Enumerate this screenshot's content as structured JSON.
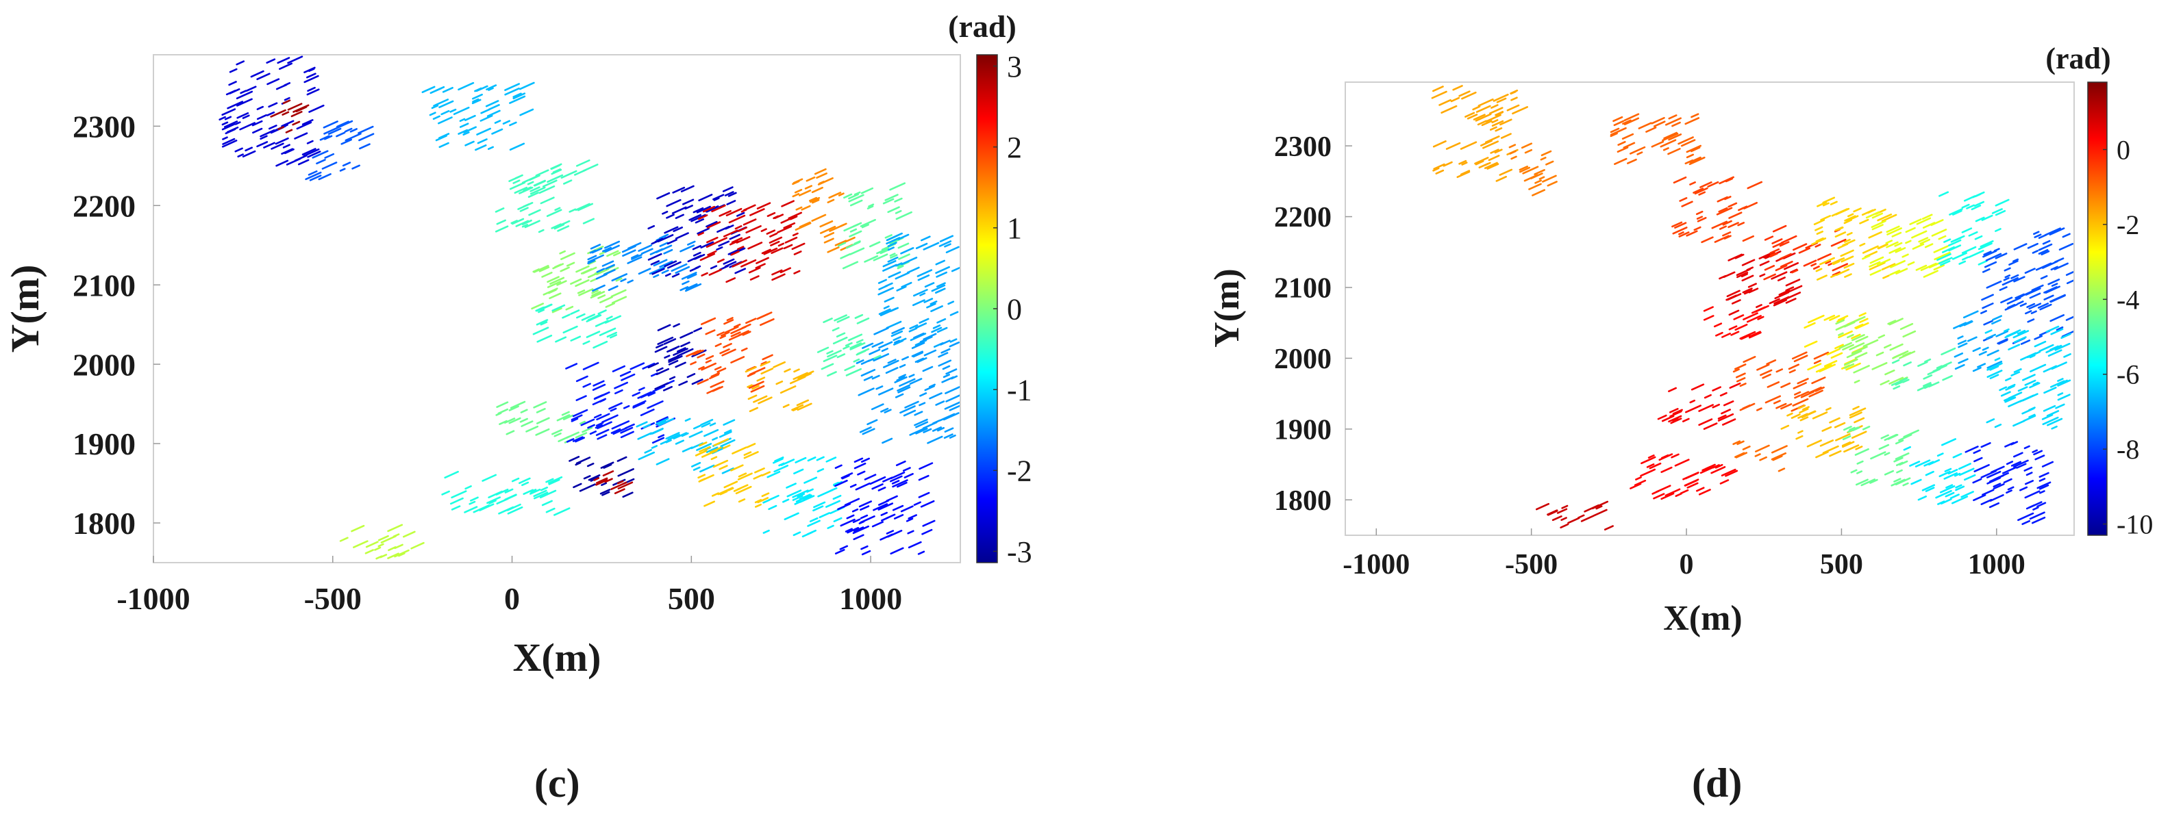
{
  "chart_data": [
    {
      "type": "heatmap",
      "panel": "c",
      "xlabel": "X(m)",
      "ylabel": "Y(m)",
      "xlim": [
        -1000,
        1250
      ],
      "ylim": [
        1750,
        2390
      ],
      "xticks": [
        -1000,
        -500,
        0,
        500,
        1000
      ],
      "yticks": [
        1800,
        1900,
        2000,
        2100,
        2200,
        2300
      ],
      "colorbar": {
        "unit": "(rad)",
        "colormap": "jet",
        "range": [
          -3.14,
          3.14
        ],
        "ticks": [
          3,
          2,
          1,
          0,
          -1,
          -2,
          -3
        ]
      },
      "bands": [
        {
          "x": [
            -820,
            -560
          ],
          "y": [
            2250,
            2380
          ],
          "value": -2.6
        },
        {
          "x": [
            -680,
            -600
          ],
          "y": [
            2290,
            2330
          ],
          "value": 2.9
        },
        {
          "x": [
            -580,
            -420
          ],
          "y": [
            2230,
            2300
          ],
          "value": -1.8
        },
        {
          "x": [
            -250,
            30
          ],
          "y": [
            2270,
            2350
          ],
          "value": -1.2
        },
        {
          "x": [
            -50,
            200
          ],
          "y": [
            2160,
            2250
          ],
          "value": -0.4
        },
        {
          "x": [
            50,
            300
          ],
          "y": [
            2060,
            2140
          ],
          "value": 0.1
        },
        {
          "x": [
            200,
            500
          ],
          "y": [
            2090,
            2160
          ],
          "value": -1.5
        },
        {
          "x": [
            380,
            630
          ],
          "y": [
            2110,
            2220
          ],
          "value": -2.7
        },
        {
          "x": [
            520,
            800
          ],
          "y": [
            2100,
            2200
          ],
          "value": 2.6
        },
        {
          "x": [
            780,
            920
          ],
          "y": [
            2140,
            2240
          ],
          "value": 1.5
        },
        {
          "x": [
            900,
            1080
          ],
          "y": [
            2120,
            2220
          ],
          "value": -0.2
        },
        {
          "x": [
            1020,
            1230
          ],
          "y": [
            2020,
            2160
          ],
          "value": -1.3
        },
        {
          "x": [
            50,
            300
          ],
          "y": [
            2020,
            2070
          ],
          "value": -0.5
        },
        {
          "x": [
            -50,
            200
          ],
          "y": [
            1900,
            1950
          ],
          "value": -0.1
        },
        {
          "x": [
            150,
            430
          ],
          "y": [
            1900,
            2000
          ],
          "value": -2.2
        },
        {
          "x": [
            380,
            520
          ],
          "y": [
            1960,
            2050
          ],
          "value": -2.8
        },
        {
          "x": [
            480,
            700
          ],
          "y": [
            1960,
            2060
          ],
          "value": 1.9
        },
        {
          "x": [
            650,
            820
          ],
          "y": [
            1940,
            2000
          ],
          "value": 1.2
        },
        {
          "x": [
            850,
            1000
          ],
          "y": [
            1980,
            2060
          ],
          "value": -0.3
        },
        {
          "x": [
            960,
            1230
          ],
          "y": [
            1900,
            2040
          ],
          "value": -1.4
        },
        {
          "x": [
            -200,
            130
          ],
          "y": [
            1810,
            1860
          ],
          "value": -0.6
        },
        {
          "x": [
            160,
            320
          ],
          "y": [
            1830,
            1880
          ],
          "value": -2.9
        },
        {
          "x": [
            220,
            300
          ],
          "y": [
            1830,
            1860
          ],
          "value": 2.8
        },
        {
          "x": [
            330,
            600
          ],
          "y": [
            1860,
            1930
          ],
          "value": -1.1
        },
        {
          "x": [
            500,
            700
          ],
          "y": [
            1820,
            1900
          ],
          "value": 1.1
        },
        {
          "x": [
            700,
            900
          ],
          "y": [
            1780,
            1880
          ],
          "value": -0.9
        },
        {
          "x": [
            900,
            1150
          ],
          "y": [
            1760,
            1880
          ],
          "value": -2.3
        },
        {
          "x": [
            -500,
            -250
          ],
          "y": [
            1755,
            1790
          ],
          "value": 0.4
        }
      ]
    },
    {
      "type": "heatmap",
      "panel": "d",
      "xlabel": "X(m)",
      "ylabel": "Y(m)",
      "xlim": [
        -1100,
        1250
      ],
      "ylim": [
        1750,
        2390
      ],
      "xticks": [
        -1000,
        -500,
        0,
        500,
        1000
      ],
      "yticks": [
        1800,
        1900,
        2000,
        2100,
        2200,
        2300
      ],
      "colorbar": {
        "unit": "(rad)",
        "colormap": "jet",
        "range": [
          -10.3,
          1.8
        ],
        "ticks": [
          0,
          -2,
          -4,
          -6,
          -8,
          -10
        ]
      },
      "bands": [
        {
          "x": [
            -820,
            -560
          ],
          "y": [
            2250,
            2380
          ],
          "value": -1.7
        },
        {
          "x": [
            -580,
            -420
          ],
          "y": [
            2230,
            2300
          ],
          "value": -1.2
        },
        {
          "x": [
            -250,
            30
          ],
          "y": [
            2270,
            2350
          ],
          "value": -0.9
        },
        {
          "x": [
            -50,
            200
          ],
          "y": [
            2160,
            2250
          ],
          "value": -0.5
        },
        {
          "x": [
            100,
            350
          ],
          "y": [
            2060,
            2150
          ],
          "value": 0.6
        },
        {
          "x": [
            250,
            480
          ],
          "y": [
            2110,
            2180
          ],
          "value": -0.3
        },
        {
          "x": [
            400,
            650
          ],
          "y": [
            2110,
            2220
          ],
          "value": -2.2
        },
        {
          "x": [
            550,
            820
          ],
          "y": [
            2110,
            2200
          ],
          "value": -3.0
        },
        {
          "x": [
            800,
            1000
          ],
          "y": [
            2130,
            2230
          ],
          "value": -5.5
        },
        {
          "x": [
            950,
            1230
          ],
          "y": [
            2020,
            2180
          ],
          "value": -7.8
        },
        {
          "x": [
            50,
            250
          ],
          "y": [
            2020,
            2070
          ],
          "value": 0.2
        },
        {
          "x": [
            -100,
            150
          ],
          "y": [
            1900,
            1960
          ],
          "value": 0.4
        },
        {
          "x": [
            150,
            420
          ],
          "y": [
            1920,
            2000
          ],
          "value": -0.7
        },
        {
          "x": [
            380,
            560
          ],
          "y": [
            1980,
            2060
          ],
          "value": -2.5
        },
        {
          "x": [
            480,
            700
          ],
          "y": [
            1960,
            2050
          ],
          "value": -4.0
        },
        {
          "x": [
            650,
            830
          ],
          "y": [
            1950,
            2010
          ],
          "value": -4.8
        },
        {
          "x": [
            850,
            1000
          ],
          "y": [
            1980,
            2060
          ],
          "value": -6.8
        },
        {
          "x": [
            960,
            1230
          ],
          "y": [
            1900,
            2040
          ],
          "value": -6.2
        },
        {
          "x": [
            -200,
            130
          ],
          "y": [
            1800,
            1860
          ],
          "value": 0.3
        },
        {
          "x": [
            150,
            320
          ],
          "y": [
            1840,
            1880
          ],
          "value": -1.0
        },
        {
          "x": [
            300,
            560
          ],
          "y": [
            1860,
            1930
          ],
          "value": -2.0
        },
        {
          "x": [
            500,
            720
          ],
          "y": [
            1820,
            1900
          ],
          "value": -4.5
        },
        {
          "x": [
            700,
            900
          ],
          "y": [
            1790,
            1880
          ],
          "value": -6.0
        },
        {
          "x": [
            900,
            1150
          ],
          "y": [
            1760,
            1880
          ],
          "value": -8.5
        },
        {
          "x": [
            -500,
            -250
          ],
          "y": [
            1755,
            1790
          ],
          "value": 0.9
        }
      ]
    }
  ],
  "panel_labels": {
    "c": "(c)",
    "d": "(d)"
  }
}
